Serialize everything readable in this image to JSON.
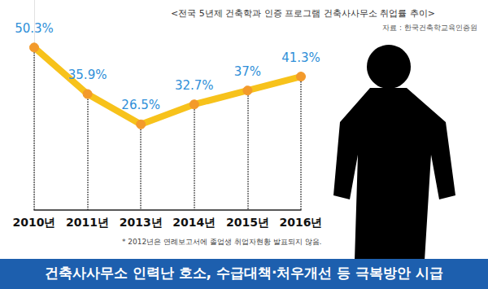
{
  "chart_data": {
    "type": "line",
    "title": "<전국 5년제 건축학과 인증 프로그램 건축사사무소 취업률 추이>",
    "source": "자료 : 한국건축학교육인증원",
    "categories": [
      "2010년",
      "2011년",
      "2013년",
      "2014년",
      "2015년",
      "2016년"
    ],
    "values": [
      50.3,
      35.9,
      26.5,
      32.7,
      37,
      41.3
    ],
    "value_labels": [
      "50.3%",
      "35.9%",
      "26.5%",
      "32.7%",
      "37%",
      "41.3%"
    ],
    "color": "#f7c21b",
    "ylim": [
      0,
      65
    ],
    "grid": false,
    "data_labels": true,
    "tick_labels": "x",
    "marker": "circle",
    "annotations": [
      "* 2012년은 연례보고서에 졸업생 취업자현황 발표되지 않음.",
      "건축사사무소 인력난 호소, 수급대책·처우개선 등 극복방안 시급"
    ]
  }
}
